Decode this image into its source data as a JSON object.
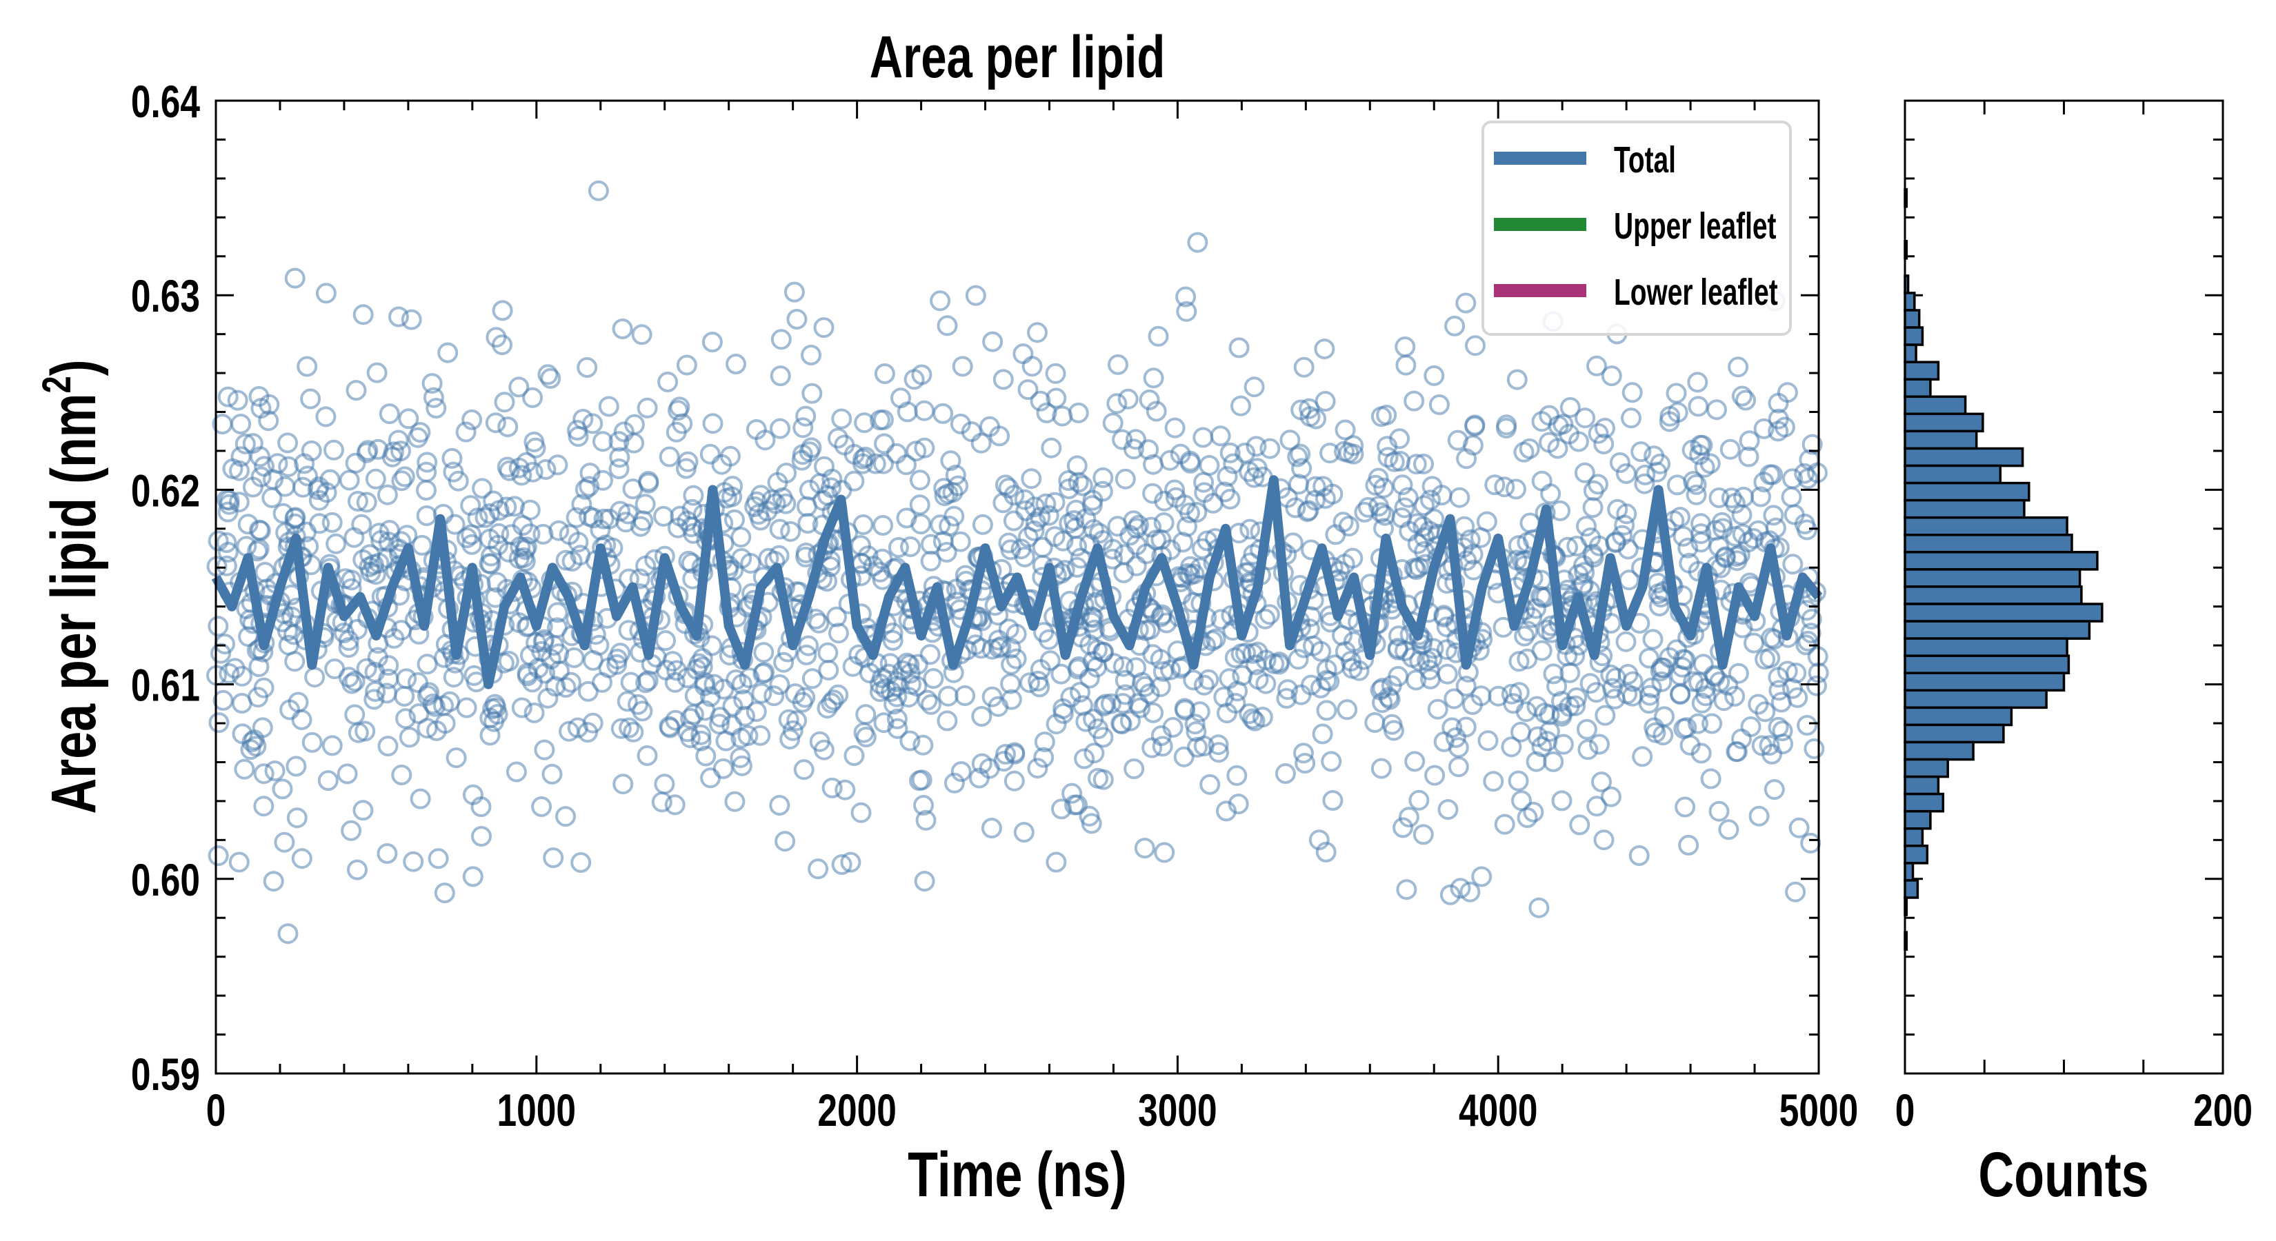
{
  "chart_data": [
    {
      "type": "scatter",
      "title": "Area per lipid",
      "xlabel": "Time (ns)",
      "ylabel": "Area per lipid (nm",
      "ylabel_sup": "2",
      "ylabel_close": ")",
      "xlim": [
        0,
        5000
      ],
      "ylim": [
        0.59,
        0.64
      ],
      "x_ticks": [
        "0",
        "1000",
        "2000",
        "3000",
        "4000",
        "5000"
      ],
      "x_tick_values": [
        0,
        1000,
        2000,
        3000,
        4000,
        5000
      ],
      "y_ticks": [
        "0.59",
        "0.60",
        "0.61",
        "0.62",
        "0.63",
        "0.64"
      ],
      "y_tick_values": [
        0.59,
        0.6,
        0.61,
        0.62,
        0.63,
        0.64
      ],
      "x_minor_step": 200,
      "y_minor_step": 0.002,
      "grid": false,
      "legend": {
        "placement": "top-right",
        "entries": [
          {
            "label": "Total",
            "color": "#4477aa"
          },
          {
            "label": "Upper leaflet",
            "color": "#228833"
          },
          {
            "label": "Lower leaflet",
            "color": "#aa3377"
          }
        ]
      },
      "scatter": {
        "name": "Total (raw frames)",
        "color": "#4477aa",
        "n_points": 1976,
        "distribution_note": "sampled from histogram counts",
        "seed": 7
      },
      "series": [
        {
          "name": "Total",
          "color": "#4477aa",
          "x_start": 0,
          "x_step": 50,
          "values": [
            0.6155,
            0.614,
            0.6165,
            0.612,
            0.615,
            0.6175,
            0.611,
            0.616,
            0.6135,
            0.6145,
            0.6125,
            0.615,
            0.617,
            0.613,
            0.6185,
            0.6115,
            0.616,
            0.61,
            0.614,
            0.6155,
            0.613,
            0.616,
            0.6145,
            0.612,
            0.617,
            0.6135,
            0.615,
            0.6115,
            0.6165,
            0.614,
            0.6125,
            0.62,
            0.613,
            0.611,
            0.615,
            0.616,
            0.612,
            0.6145,
            0.6175,
            0.6195,
            0.613,
            0.6115,
            0.6145,
            0.616,
            0.6125,
            0.615,
            0.611,
            0.6135,
            0.617,
            0.614,
            0.6155,
            0.613,
            0.616,
            0.6115,
            0.6145,
            0.617,
            0.6135,
            0.612,
            0.615,
            0.6165,
            0.614,
            0.611,
            0.6155,
            0.618,
            0.6125,
            0.615,
            0.6205,
            0.612,
            0.6145,
            0.617,
            0.6135,
            0.6155,
            0.6115,
            0.6175,
            0.614,
            0.6125,
            0.616,
            0.6185,
            0.611,
            0.615,
            0.6175,
            0.613,
            0.6155,
            0.619,
            0.612,
            0.6145,
            0.6115,
            0.6165,
            0.613,
            0.615,
            0.62,
            0.614,
            0.6125,
            0.616,
            0.611,
            0.615,
            0.6135,
            0.617,
            0.6125,
            0.6155,
            0.6145
          ]
        }
      ]
    },
    {
      "type": "bar",
      "orientation": "horizontal",
      "xlabel": "Counts",
      "xlim": [
        0,
        200
      ],
      "ylim": [
        0.59,
        0.64
      ],
      "x_ticks": [
        "0",
        "200"
      ],
      "x_tick_values": [
        0,
        200
      ],
      "x_minor_step": 50,
      "color": "#4477aa",
      "edge_color": "#000000",
      "bin_first_center": 0.635,
      "bin_width": 0.000888,
      "counts_top_to_bottom": [
        1,
        0,
        0,
        1,
        0,
        2,
        6,
        9,
        11,
        7,
        21,
        16,
        38,
        49,
        45,
        74,
        60,
        78,
        75,
        102,
        105,
        121,
        110,
        111,
        124,
        116,
        102,
        103,
        100,
        89,
        67,
        62,
        43,
        27,
        21,
        24,
        16,
        11,
        14,
        5,
        8,
        1,
        0,
        1
      ]
    }
  ]
}
